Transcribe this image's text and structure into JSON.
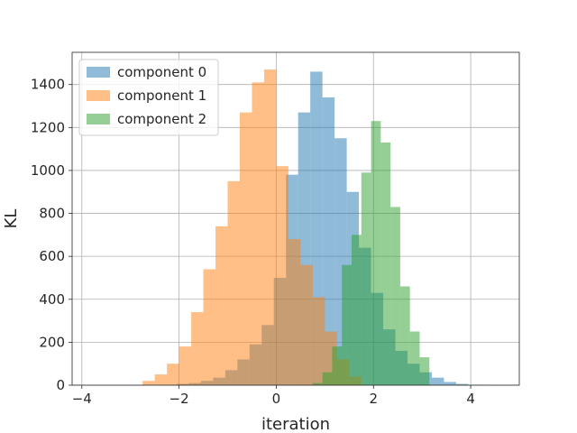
{
  "chart_data": {
    "type": "bar",
    "histogram": true,
    "title": "",
    "xlabel": "iteration",
    "ylabel": "KL",
    "xlim": [
      -4.2,
      5.0
    ],
    "ylim": [
      0,
      1550
    ],
    "xticks": [
      -4,
      -2,
      0,
      2,
      4
    ],
    "xtick_labels": [
      "−4",
      "−2",
      "0",
      "2",
      "4"
    ],
    "yticks": [
      0,
      200,
      400,
      600,
      800,
      1000,
      1200,
      1400
    ],
    "ytick_labels": [
      "0",
      "200",
      "400",
      "600",
      "800",
      "1000",
      "1200",
      "1400"
    ],
    "grid": true,
    "legend_position": "top-left",
    "series": [
      {
        "name": "component 0",
        "color": "#1f77b4",
        "opacity": 0.5,
        "bin_edges": [
          -2.3,
          -2.05,
          -1.8,
          -1.55,
          -1.3,
          -1.05,
          -0.8,
          -0.55,
          -0.3,
          -0.05,
          0.2,
          0.45,
          0.7,
          0.95,
          1.2,
          1.45,
          1.7,
          1.95,
          2.2,
          2.45,
          2.7,
          2.95,
          3.2,
          3.45,
          3.7,
          3.95,
          4.2,
          4.45
        ],
        "values": [
          2,
          6,
          10,
          20,
          35,
          70,
          120,
          190,
          280,
          500,
          980,
          1270,
          1460,
          1340,
          1150,
          900,
          640,
          430,
          260,
          160,
          100,
          60,
          35,
          15,
          6,
          2,
          1
        ]
      },
      {
        "name": "component 1",
        "color": "#ff7f0e",
        "opacity": 0.5,
        "bin_edges": [
          -2.75,
          -2.5,
          -2.25,
          -2.0,
          -1.75,
          -1.5,
          -1.25,
          -1.0,
          -0.75,
          -0.5,
          -0.25,
          0.0,
          0.25,
          0.5,
          0.75,
          1.0,
          1.25,
          1.5,
          1.75
        ],
        "values": [
          20,
          50,
          100,
          180,
          340,
          540,
          740,
          950,
          1270,
          1410,
          1470,
          1020,
          680,
          560,
          410,
          250,
          120,
          40
        ]
      },
      {
        "name": "component 2",
        "color": "#2ca02c",
        "opacity": 0.5,
        "bin_edges": [
          0.75,
          0.95,
          1.15,
          1.35,
          1.55,
          1.75,
          1.95,
          2.15,
          2.35,
          2.55,
          2.75,
          2.95,
          3.15
        ],
        "values": [
          10,
          60,
          180,
          560,
          700,
          990,
          1230,
          1130,
          830,
          460,
          250,
          130
        ]
      }
    ]
  }
}
